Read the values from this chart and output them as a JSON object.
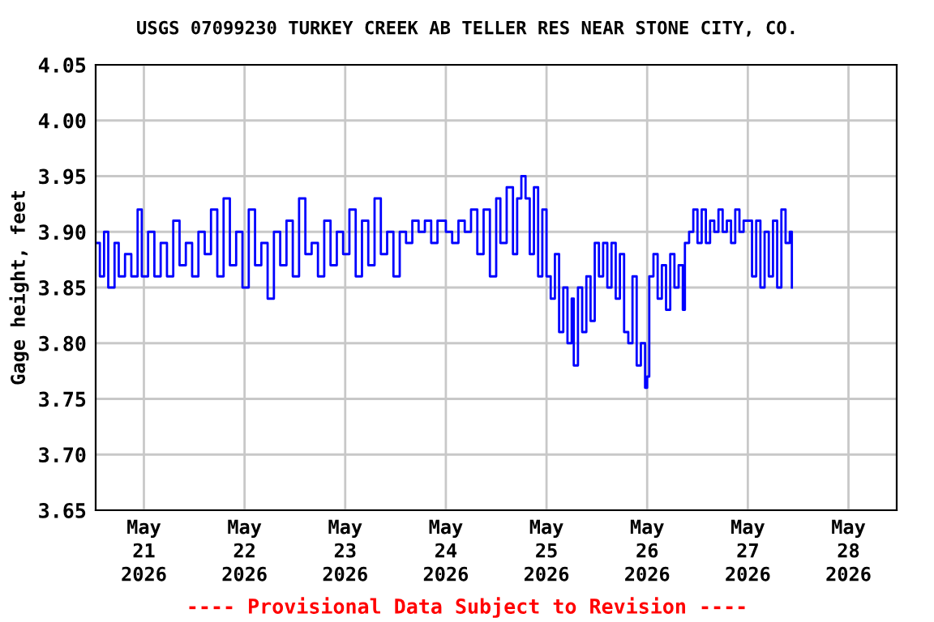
{
  "chart_data": {
    "type": "step",
    "title": "USGS 07099230 TURKEY CREEK AB TELLER RES NEAR STONE CITY, CO.",
    "ylabel": "Gage height, feet",
    "annotations": [
      "---- Provisional Data Subject to Revision ----"
    ],
    "xlim": [
      "2026-05-20T12:30",
      "2026-05-28T11:30"
    ],
    "xticks": [
      {
        "value": "2026-05-21",
        "label": "May\n21\n2026"
      },
      {
        "value": "2026-05-22",
        "label": "May\n22\n2026"
      },
      {
        "value": "2026-05-23",
        "label": "May\n23\n2026"
      },
      {
        "value": "2026-05-24",
        "label": "May\n24\n2026"
      },
      {
        "value": "2026-05-25",
        "label": "May\n25\n2026"
      },
      {
        "value": "2026-05-26",
        "label": "May\n26\n2026"
      },
      {
        "value": "2026-05-27",
        "label": "May\n27\n2026"
      },
      {
        "value": "2026-05-28",
        "label": "May\n28\n2026"
      }
    ],
    "ylim": [
      3.65,
      4.05
    ],
    "yticks": [
      {
        "value": 3.65,
        "label": "3.65"
      },
      {
        "value": 3.7,
        "label": "3.70"
      },
      {
        "value": 3.75,
        "label": "3.75"
      },
      {
        "value": 3.8,
        "label": "3.80"
      },
      {
        "value": 3.85,
        "label": "3.85"
      },
      {
        "value": 3.9,
        "label": "3.90"
      },
      {
        "value": 3.95,
        "label": "3.95"
      },
      {
        "value": 4.0,
        "label": "4.00"
      },
      {
        "value": 4.05,
        "label": "4.05"
      }
    ],
    "grid": true,
    "series": [
      {
        "color": "#0000ff",
        "x": [
          "2026-05-20T12:30",
          "2026-05-20T13:30",
          "2026-05-20T14:30",
          "2026-05-20T15:30",
          "2026-05-20T17:00",
          "2026-05-20T18:00",
          "2026-05-20T19:30",
          "2026-05-20T21:00",
          "2026-05-20T22:30",
          "2026-05-20T23:30",
          "2026-05-21T01:00",
          "2026-05-21T02:30",
          "2026-05-21T04:00",
          "2026-05-21T05:30",
          "2026-05-21T07:00",
          "2026-05-21T08:30",
          "2026-05-21T10:00",
          "2026-05-21T11:30",
          "2026-05-21T13:00",
          "2026-05-21T14:30",
          "2026-05-21T16:00",
          "2026-05-21T17:30",
          "2026-05-21T19:00",
          "2026-05-21T20:30",
          "2026-05-21T22:00",
          "2026-05-21T23:30",
          "2026-05-22T01:00",
          "2026-05-22T02:30",
          "2026-05-22T04:00",
          "2026-05-22T05:30",
          "2026-05-22T07:00",
          "2026-05-22T08:30",
          "2026-05-22T10:00",
          "2026-05-22T11:30",
          "2026-05-22T13:00",
          "2026-05-22T14:30",
          "2026-05-22T16:00",
          "2026-05-22T17:30",
          "2026-05-22T19:00",
          "2026-05-22T20:30",
          "2026-05-22T22:00",
          "2026-05-22T23:30",
          "2026-05-23T01:00",
          "2026-05-23T02:30",
          "2026-05-23T04:00",
          "2026-05-23T05:30",
          "2026-05-23T07:00",
          "2026-05-23T08:30",
          "2026-05-23T10:00",
          "2026-05-23T11:30",
          "2026-05-23T13:00",
          "2026-05-23T14:30",
          "2026-05-23T16:00",
          "2026-05-23T17:30",
          "2026-05-23T19:00",
          "2026-05-23T20:30",
          "2026-05-23T22:00",
          "2026-05-24T00:00",
          "2026-05-24T01:30",
          "2026-05-24T03:00",
          "2026-05-24T04:30",
          "2026-05-24T06:00",
          "2026-05-24T07:30",
          "2026-05-24T09:00",
          "2026-05-24T10:30",
          "2026-05-24T12:00",
          "2026-05-24T13:00",
          "2026-05-24T14:30",
          "2026-05-24T16:00",
          "2026-05-24T17:00",
          "2026-05-24T18:00",
          "2026-05-24T19:00",
          "2026-05-24T20:00",
          "2026-05-24T21:00",
          "2026-05-24T22:00",
          "2026-05-24T23:00",
          "2026-05-25T00:00",
          "2026-05-25T01:00",
          "2026-05-25T02:00",
          "2026-05-25T03:00",
          "2026-05-25T04:00",
          "2026-05-25T05:00",
          "2026-05-25T06:00",
          "2026-05-25T06:30",
          "2026-05-25T07:30",
          "2026-05-25T08:30",
          "2026-05-25T09:30",
          "2026-05-25T10:30",
          "2026-05-25T11:30",
          "2026-05-25T12:30",
          "2026-05-25T13:30",
          "2026-05-25T14:30",
          "2026-05-25T15:30",
          "2026-05-25T16:30",
          "2026-05-25T17:30",
          "2026-05-25T18:30",
          "2026-05-25T19:30",
          "2026-05-25T20:30",
          "2026-05-25T21:30",
          "2026-05-25T22:30",
          "2026-05-25T23:30",
          "2026-05-26T00:00",
          "2026-05-26T00:30",
          "2026-05-26T01:30",
          "2026-05-26T02:30",
          "2026-05-26T03:30",
          "2026-05-26T04:30",
          "2026-05-26T05:30",
          "2026-05-26T06:30",
          "2026-05-26T07:30",
          "2026-05-26T08:30",
          "2026-05-26T09:00",
          "2026-05-26T10:00",
          "2026-05-26T11:00",
          "2026-05-26T12:00",
          "2026-05-26T13:00",
          "2026-05-26T14:00",
          "2026-05-26T15:00",
          "2026-05-26T16:00",
          "2026-05-26T17:00",
          "2026-05-26T18:00",
          "2026-05-26T19:00",
          "2026-05-26T20:00",
          "2026-05-26T21:00",
          "2026-05-26T22:00",
          "2026-05-26T23:00",
          "2026-05-27T00:00",
          "2026-05-27T01:00",
          "2026-05-27T02:00",
          "2026-05-27T03:00",
          "2026-05-27T04:00",
          "2026-05-27T05:00",
          "2026-05-27T06:00",
          "2026-05-27T07:00",
          "2026-05-27T08:00",
          "2026-05-27T09:00",
          "2026-05-27T10:00",
          "2026-05-27T10:30"
        ],
        "values": [
          3.89,
          3.86,
          3.9,
          3.85,
          3.89,
          3.86,
          3.88,
          3.86,
          3.92,
          3.86,
          3.9,
          3.86,
          3.89,
          3.86,
          3.91,
          3.87,
          3.89,
          3.86,
          3.9,
          3.88,
          3.92,
          3.86,
          3.93,
          3.87,
          3.9,
          3.85,
          3.92,
          3.87,
          3.89,
          3.84,
          3.9,
          3.87,
          3.91,
          3.86,
          3.93,
          3.88,
          3.89,
          3.86,
          3.91,
          3.87,
          3.9,
          3.88,
          3.92,
          3.86,
          3.91,
          3.87,
          3.93,
          3.88,
          3.9,
          3.86,
          3.9,
          3.89,
          3.91,
          3.9,
          3.91,
          3.89,
          3.91,
          3.9,
          3.89,
          3.91,
          3.9,
          3.92,
          3.88,
          3.92,
          3.86,
          3.93,
          3.89,
          3.94,
          3.88,
          3.93,
          3.95,
          3.93,
          3.88,
          3.94,
          3.86,
          3.92,
          3.86,
          3.84,
          3.88,
          3.81,
          3.85,
          3.8,
          3.84,
          3.78,
          3.85,
          3.81,
          3.86,
          3.82,
          3.89,
          3.86,
          3.89,
          3.85,
          3.89,
          3.84,
          3.88,
          3.81,
          3.8,
          3.86,
          3.78,
          3.8,
          3.76,
          3.77,
          3.86,
          3.88,
          3.84,
          3.87,
          3.83,
          3.88,
          3.85,
          3.87,
          3.83,
          3.89,
          3.9,
          3.92,
          3.89,
          3.92,
          3.89,
          3.91,
          3.9,
          3.92,
          3.9,
          3.91,
          3.89,
          3.92,
          3.9,
          3.91,
          3.91,
          3.86,
          3.91,
          3.85,
          3.9,
          3.86,
          3.91,
          3.85,
          3.92,
          3.89,
          3.9,
          3.85
        ]
      }
    ]
  }
}
